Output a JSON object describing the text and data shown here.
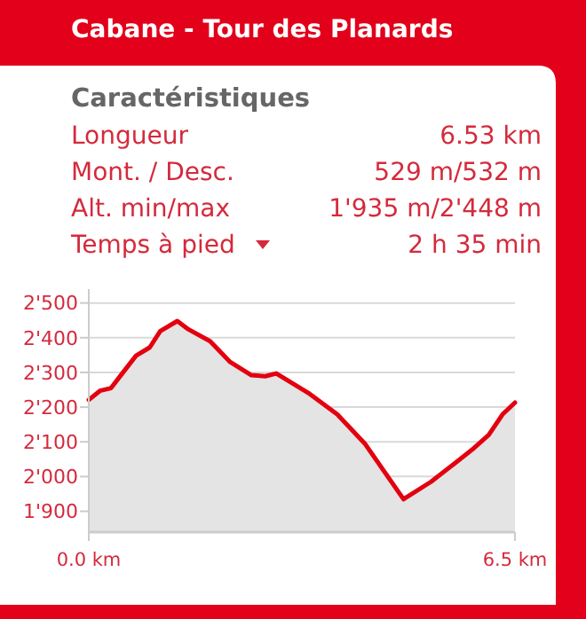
{
  "chart_data": {
    "type": "area",
    "title": "Cabane - Tour des Planards",
    "subtitle": "Caractéristiques",
    "annotations": [
      "Longueur",
      "6.53 km",
      "Mont. / Desc.",
      "529 m/532 m",
      "Alt. min/max",
      "1'935 m/2'448 m",
      "Temps à pied",
      "2 h 35 min"
    ],
    "x": [
      0,
      0.17,
      0.34,
      0.51,
      0.72,
      0.93,
      1.09,
      1.35,
      1.52,
      1.85,
      2.15,
      2.48,
      2.69,
      2.86,
      3.37,
      3.79,
      4.21,
      4.8,
      5.22,
      5.56,
      5.85,
      6.1,
      6.31,
      6.5
    ],
    "series": [
      {
        "color": "#e3000f",
        "values": [
          2221,
          2247,
          2255,
          2297,
          2348,
          2372,
          2419,
          2448,
          2424,
          2390,
          2331,
          2292,
          2289,
          2297,
          2238,
          2179,
          2095,
          1935,
          1985,
          2035,
          2078,
          2120,
          2179,
          2213
        ]
      }
    ],
    "xlim": [
      0,
      6.5
    ],
    "xticks": [
      {
        "value": 0,
        "label": "0.0 km"
      },
      {
        "value": 6.5,
        "label": "6.5 km"
      }
    ],
    "ylim": [
      1840,
      2540
    ],
    "yticks": [
      {
        "value": 1900,
        "label": "1'900"
      },
      {
        "value": 2000,
        "label": "2'000"
      },
      {
        "value": 2100,
        "label": "2'100"
      },
      {
        "value": 2200,
        "label": "2'200"
      },
      {
        "value": 2300,
        "label": "2'300"
      },
      {
        "value": 2400,
        "label": "2'400"
      },
      {
        "value": 2500,
        "label": "2'500"
      }
    ],
    "grid": "y",
    "marker": "none",
    "line_style": "solid"
  }
}
